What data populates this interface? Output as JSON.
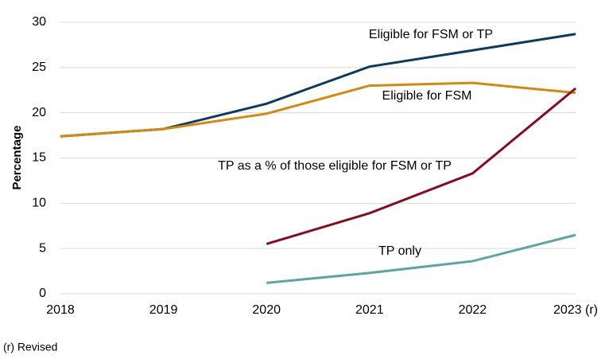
{
  "chart_data": {
    "type": "line",
    "y_label": "Percentage",
    "footnote": "(r) Revised",
    "categories": [
      "2018",
      "2019",
      "2020",
      "2021",
      "2022",
      "2023 (r)"
    ],
    "series": [
      {
        "name": "Eligible for FSM or TP",
        "color": "#0e3a5f",
        "values": [
          17.4,
          18.2,
          21.0,
          25.1,
          26.9,
          28.7
        ]
      },
      {
        "name": "Eligible for FSM",
        "color": "#d9870b",
        "values": [
          17.4,
          18.2,
          19.9,
          23.0,
          23.3,
          22.2
        ]
      },
      {
        "name": "TP as a % of those eligible for FSM or TP",
        "color": "#8b0a22",
        "values": [
          null,
          null,
          5.5,
          8.9,
          13.3,
          22.7
        ]
      },
      {
        "name": "TP only",
        "color": "#5ba6a1",
        "values": [
          null,
          null,
          1.2,
          2.3,
          3.6,
          6.5
        ]
      }
    ],
    "ylim": [
      0,
      30
    ],
    "yticks": [
      0,
      5,
      10,
      15,
      20,
      25,
      30
    ],
    "grid": true
  }
}
